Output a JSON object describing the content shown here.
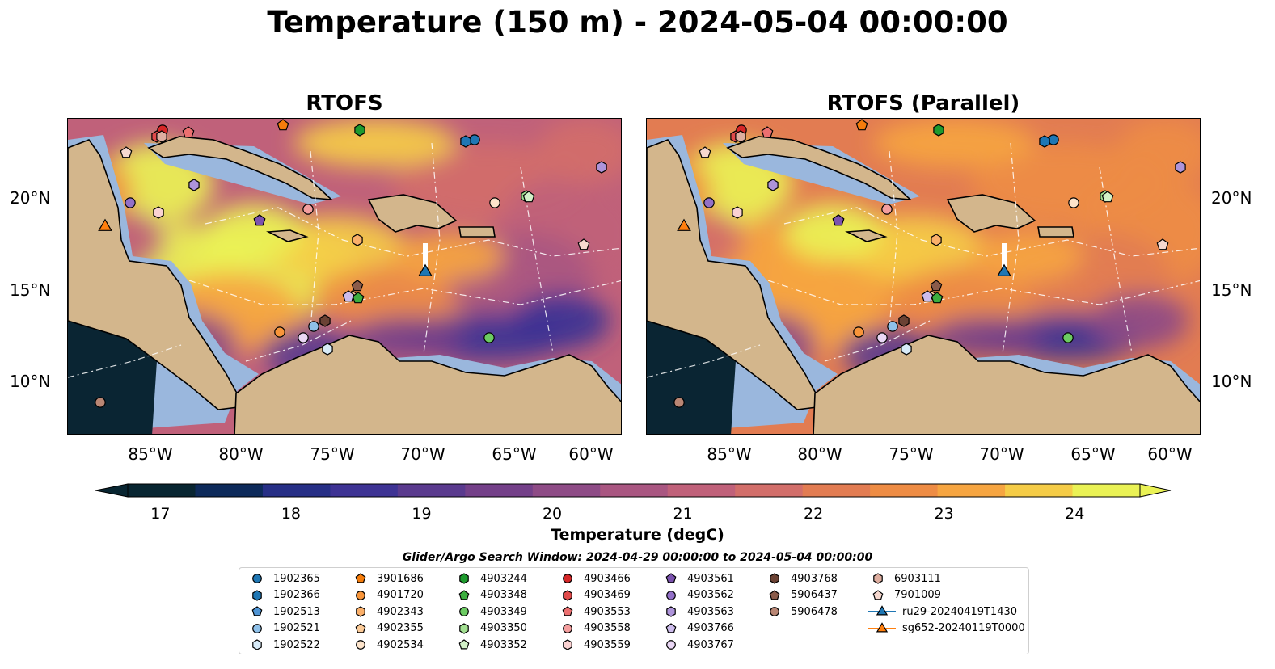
{
  "title": "Temperature (150 m) - 2024-05-04 00:00:00",
  "panels": [
    {
      "title": "RTOFS"
    },
    {
      "title": "RTOFS (Parallel)"
    }
  ],
  "lat_ticks": [
    "20°N",
    "15°N",
    "10°N"
  ],
  "lon_ticks": [
    "85°W",
    "80°W",
    "75°W",
    "70°W",
    "65°W",
    "60°W"
  ],
  "colorbar": {
    "label": "Temperature (degC)",
    "ticks": [
      "17",
      "18",
      "19",
      "20",
      "21",
      "22",
      "23",
      "24"
    ],
    "range": [
      16.75,
      24.5
    ],
    "colors": [
      "#082531",
      "#0d2a5a",
      "#272f86",
      "#3e3394",
      "#5a3a8e",
      "#744089",
      "#8e4b86",
      "#a95681",
      "#c0617a",
      "#d26e6a",
      "#e27c52",
      "#ee8c44",
      "#f6a541",
      "#f5cc47",
      "#eaf255"
    ]
  },
  "search_window": "Glider/Argo Search Window: 2024-04-29 00:00:00 to 2024-05-04 00:00:00",
  "map_colors": {
    "land": "#d3b68c",
    "shelf": "#9ab7dd",
    "deep": "#0a2533"
  },
  "legend": [
    {
      "label": "1902365",
      "color": "#1f77b4",
      "marker": "circle"
    },
    {
      "label": "1902366",
      "color": "#1f77b4",
      "marker": "hexagon"
    },
    {
      "label": "1902513",
      "color": "#4f94d4",
      "marker": "pentagon"
    },
    {
      "label": "1902521",
      "color": "#8fc1ea",
      "marker": "circle"
    },
    {
      "label": "1902522",
      "color": "#d8ebf8",
      "marker": "hexagon"
    },
    {
      "label": "3901686",
      "color": "#f57c0b",
      "marker": "pentagon"
    },
    {
      "label": "4901720",
      "color": "#f8953a",
      "marker": "circle"
    },
    {
      "label": "4902343",
      "color": "#fbb06a",
      "marker": "hexagon"
    },
    {
      "label": "4902355",
      "color": "#fccb98",
      "marker": "pentagon"
    },
    {
      "label": "4902534",
      "color": "#fde4cb",
      "marker": "circle"
    },
    {
      "label": "4903244",
      "color": "#1e9a2e",
      "marker": "hexagon"
    },
    {
      "label": "4903348",
      "color": "#3cae3f",
      "marker": "pentagon"
    },
    {
      "label": "4903349",
      "color": "#6ccb62",
      "marker": "circle"
    },
    {
      "label": "4903350",
      "color": "#a2df91",
      "marker": "hexagon"
    },
    {
      "label": "4903352",
      "color": "#d3f1c8",
      "marker": "pentagon"
    },
    {
      "label": "4903466",
      "color": "#d62728",
      "marker": "circle"
    },
    {
      "label": "4903469",
      "color": "#e04a4a",
      "marker": "hexagon"
    },
    {
      "label": "4903553",
      "color": "#ec7070",
      "marker": "pentagon"
    },
    {
      "label": "4903558",
      "color": "#f49e9e",
      "marker": "circle"
    },
    {
      "label": "4903559",
      "color": "#fad2d2",
      "marker": "hexagon"
    },
    {
      "label": "4903561",
      "color": "#7b52ae",
      "marker": "pentagon"
    },
    {
      "label": "4903562",
      "color": "#9370c8",
      "marker": "circle"
    },
    {
      "label": "4903563",
      "color": "#ae94da",
      "marker": "hexagon"
    },
    {
      "label": "4903766",
      "color": "#cdbcec",
      "marker": "pentagon"
    },
    {
      "label": "4903767",
      "color": "#ead7f5",
      "marker": "circle"
    },
    {
      "label": "4903768",
      "color": "#6b4234",
      "marker": "hexagon"
    },
    {
      "label": "5906437",
      "color": "#8a5b4a",
      "marker": "pentagon"
    },
    {
      "label": "5906478",
      "color": "#b98674",
      "marker": "circle"
    },
    {
      "label": "6903111",
      "color": "#deaea0",
      "marker": "hexagon"
    },
    {
      "label": "7901009",
      "color": "#f6d8cf",
      "marker": "pentagon"
    },
    {
      "label": "ru29-20240419T1430",
      "color": "#1f77b4",
      "marker": "triangle"
    },
    {
      "label": "sg652-20240119T0000",
      "color": "#ff7f0e",
      "marker": "triangle"
    }
  ]
}
